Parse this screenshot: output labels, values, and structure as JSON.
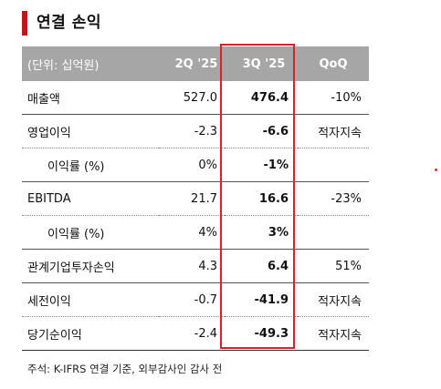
{
  "title": "연결 손익",
  "headers": [
    "(단위: 십억원)",
    "2Q '25",
    "3Q '25",
    "QoQ"
  ],
  "rows": [
    {
      "label": "매출액",
      "q2": "527.0",
      "q3": "476.4",
      "qoq": "-10%"
    },
    {
      "label": "영업이익",
      "q2": "-2.3",
      "q3": "-6.6",
      "qoq": "적자지속"
    },
    {
      "label": "이익률 (%)",
      "q2": "0%",
      "q3": "-1%",
      "qoq": ""
    },
    {
      "label": "EBITDA",
      "q2": "21.7",
      "q3": "16.6",
      "qoq": "-23%"
    },
    {
      "label": "이익률 (%)",
      "q2": "4%",
      "q3": "3%",
      "qoq": ""
    },
    {
      "label": "관계기업투자손익",
      "q2": "4.3",
      "q3": "6.4",
      "qoq": "51%"
    },
    {
      "label": "세전이익",
      "q2": "-0.7",
      "q3": "-41.9",
      "qoq": "적자지속"
    },
    {
      "label": "당기순이익",
      "q2": "-2.4",
      "q3": "-49.3",
      "qoq": "적자지속"
    }
  ],
  "note": "주석: K-IFRS 연결 기준, 외부감사인 감사 전",
  "colors": {
    "accent": "#c0161c",
    "header_bg": "#a6a6a6",
    "highlight": "#d6222a"
  }
}
